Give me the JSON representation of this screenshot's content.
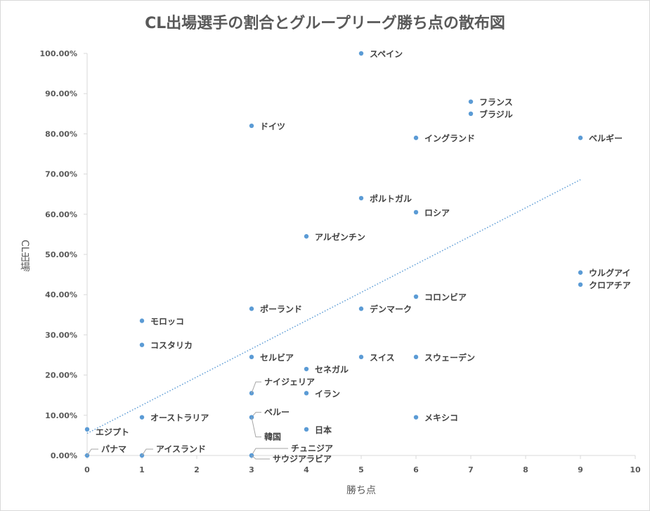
{
  "chart_data": {
    "type": "scatter",
    "title": "CL出場選手の割合とグループリーグ勝ち点の散布図",
    "xlabel": "勝ち点",
    "ylabel": "CL出場",
    "xlim": [
      0,
      10
    ],
    "ylim": [
      0,
      1.0
    ],
    "x_ticks": [
      "0",
      "1",
      "2",
      "3",
      "4",
      "5",
      "6",
      "7",
      "8",
      "9",
      "10"
    ],
    "y_ticks": [
      "0.00%",
      "10.00%",
      "20.00%",
      "30.00%",
      "40.00%",
      "50.00%",
      "60.00%",
      "70.00%",
      "80.00%",
      "90.00%",
      "100.00%"
    ],
    "grid": false,
    "marker_color": "#5b9bd5",
    "trendline": {
      "style": "dotted",
      "color": "#5b9bd5",
      "x": [
        0,
        9
      ],
      "y": [
        0.055,
        0.686
      ]
    },
    "points": [
      {
        "label": "スペイン",
        "x": 5,
        "y": 1.0
      },
      {
        "label": "フランス",
        "x": 7,
        "y": 0.88
      },
      {
        "label": "ブラジル",
        "x": 7,
        "y": 0.85
      },
      {
        "label": "ドイツ",
        "x": 3,
        "y": 0.82
      },
      {
        "label": "イングランド",
        "x": 6,
        "y": 0.79
      },
      {
        "label": "ベルギー",
        "x": 9,
        "y": 0.79
      },
      {
        "label": "ポルトガル",
        "x": 5,
        "y": 0.64
      },
      {
        "label": "ロシア",
        "x": 6,
        "y": 0.605
      },
      {
        "label": "アルゼンチン",
        "x": 4,
        "y": 0.545
      },
      {
        "label": "ウルグアイ",
        "x": 9,
        "y": 0.455
      },
      {
        "label": "クロアチア",
        "x": 9,
        "y": 0.425
      },
      {
        "label": "コロンビア",
        "x": 6,
        "y": 0.395
      },
      {
        "label": "ポーランド",
        "x": 3,
        "y": 0.365
      },
      {
        "label": "デンマーク",
        "x": 5,
        "y": 0.365
      },
      {
        "label": "モロッコ",
        "x": 1,
        "y": 0.335
      },
      {
        "label": "コスタリカ",
        "x": 1,
        "y": 0.275
      },
      {
        "label": "セルビア",
        "x": 3,
        "y": 0.245
      },
      {
        "label": "スイス",
        "x": 5,
        "y": 0.245
      },
      {
        "label": "スウェーデン",
        "x": 6,
        "y": 0.245
      },
      {
        "label": "セネガル",
        "x": 4,
        "y": 0.215
      },
      {
        "label": "ナイジェリア",
        "x": 3,
        "y": 0.155
      },
      {
        "label": "イラン",
        "x": 4,
        "y": 0.155
      },
      {
        "label": "オーストラリア",
        "x": 1,
        "y": 0.095
      },
      {
        "label": "ペルー",
        "x": 3,
        "y": 0.095
      },
      {
        "label": "韓国",
        "x": 3,
        "y": 0.095
      },
      {
        "label": "メキシコ",
        "x": 6,
        "y": 0.095
      },
      {
        "label": "エジプト",
        "x": 0,
        "y": 0.065
      },
      {
        "label": "日本",
        "x": 4,
        "y": 0.065
      },
      {
        "label": "パナマ",
        "x": 0,
        "y": 0.0
      },
      {
        "label": "アイスランド",
        "x": 1,
        "y": 0.0
      },
      {
        "label": "チュニジア",
        "x": 3,
        "y": 0.0
      },
      {
        "label": "サウジアラビア",
        "x": 3,
        "y": 0.0
      }
    ]
  }
}
